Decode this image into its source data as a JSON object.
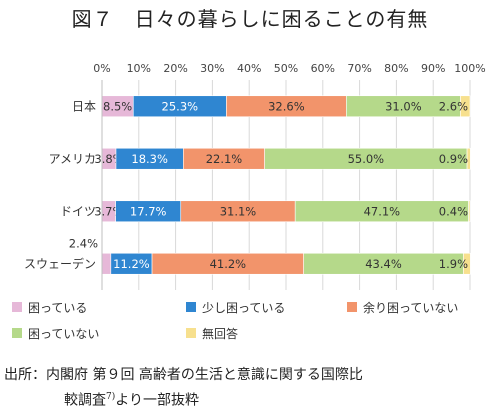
{
  "title": "図７　日々の暮らしに困ることの有無",
  "source": {
    "line1": "出所：内閣府 第９回 高齢者の生活と意識に関する国際比",
    "line2_main": "較調査",
    "line2_sup": "7)",
    "line2_tail": "より一部抜粋"
  },
  "chart_data": {
    "type": "bar",
    "orientation": "horizontal",
    "stacked": true,
    "xlim": [
      0,
      100
    ],
    "x_tick_labels": [
      "0%",
      "10%",
      "20%",
      "30%",
      "40%",
      "50%",
      "60%",
      "70%",
      "80%",
      "90%",
      "100%"
    ],
    "grid": true,
    "legend_position": "bottom",
    "categories": [
      "日本",
      "アメリカ",
      "ドイツ",
      "スウェーデン"
    ],
    "series": [
      {
        "name": "困っている",
        "color": "#e6b8d8",
        "values": [
          8.5,
          3.8,
          3.7,
          2.4
        ],
        "labels": [
          "8.5%",
          "3.8%",
          "3.7%",
          "2.4%"
        ]
      },
      {
        "name": "少し困っている",
        "color": "#2f86d1",
        "values": [
          25.3,
          18.3,
          17.7,
          11.2
        ],
        "labels": [
          "25.3%",
          "18.3%",
          "17.7%",
          "11.2%"
        ]
      },
      {
        "name": "余り困っていない",
        "color": "#f2946b",
        "values": [
          32.6,
          22.1,
          31.1,
          41.2
        ],
        "labels": [
          "32.6%",
          "22.1%",
          "31.1%",
          "41.2%"
        ]
      },
      {
        "name": "困っていない",
        "color": "#b5d98a",
        "values": [
          31.0,
          55.0,
          47.1,
          43.4
        ],
        "labels": [
          "31.0%",
          "55.0%",
          "47.1%",
          "43.4%"
        ]
      },
      {
        "name": "無回答",
        "color": "#f7e08e",
        "values": [
          2.6,
          0.9,
          0.4,
          1.9
        ],
        "labels": [
          "2.6%",
          "0.9%",
          "0.4%",
          "1.9%"
        ]
      }
    ]
  }
}
